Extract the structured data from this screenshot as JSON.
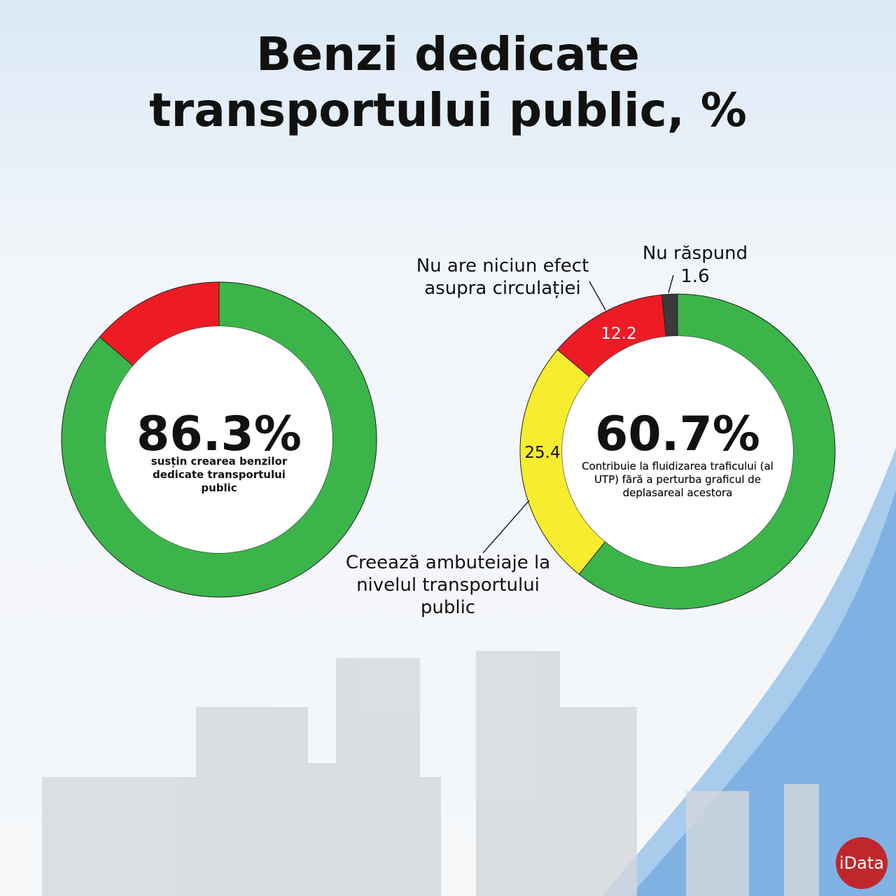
{
  "title": "Benzi dedicate transportului public, %",
  "logo": "iData",
  "chart_data": [
    {
      "type": "donut",
      "categories": [
        "susțin crearea benzilor dedicate transportului public",
        null
      ],
      "values": [
        86.3,
        13.7
      ],
      "value_labels": [
        "86.3%",
        null
      ],
      "colors": [
        "#3bb54a",
        "#ed1c24"
      ]
    },
    {
      "type": "donut",
      "categories": [
        "Contribuie la fluidizarea traficului (al UTP) fără a perturba graficul de deplasareal acestora",
        "Creează ambuteiaje la nivelul transportului public",
        "Nu are niciun efect asupra circulației",
        "Nu răspund"
      ],
      "values": [
        60.7,
        25.4,
        12.2,
        1.6
      ],
      "value_labels": [
        "60.7%",
        null,
        null,
        null
      ],
      "colors": [
        "#3bb54a",
        "#f7ec2d",
        "#ed1c24",
        "#3a3a3a"
      ]
    }
  ]
}
